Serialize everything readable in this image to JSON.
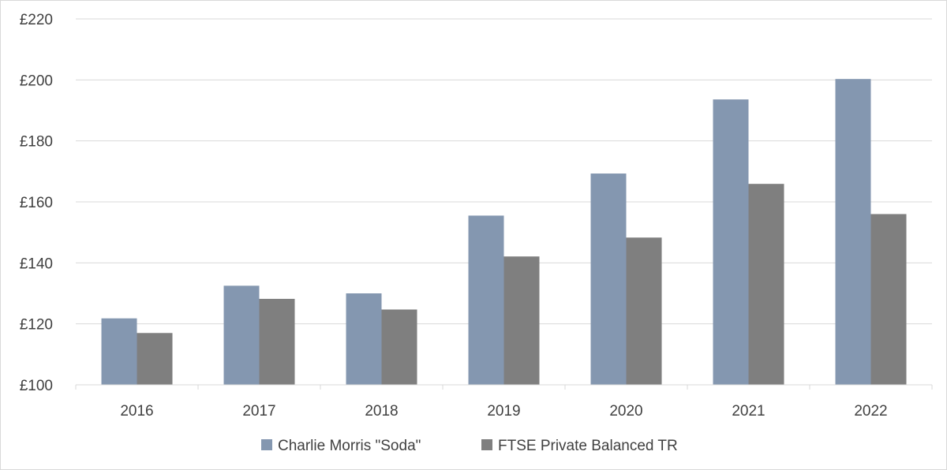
{
  "chart_data": {
    "type": "bar",
    "title": "",
    "xlabel": "",
    "ylabel": "",
    "categories": [
      "2016",
      "2017",
      "2018",
      "2019",
      "2020",
      "2021",
      "2022"
    ],
    "series": [
      {
        "name": "Charlie Morris \"Soda\"",
        "color": "#8497b0",
        "values": [
          121.8,
          132.5,
          130.0,
          155.5,
          169.3,
          193.6,
          200.3
        ]
      },
      {
        "name": "FTSE Private Balanced TR",
        "color": "#7f7f7f",
        "values": [
          117.0,
          128.2,
          124.7,
          142.1,
          148.3,
          165.9,
          156.0
        ]
      }
    ],
    "ylim": [
      100,
      220
    ],
    "yticks": [
      100,
      120,
      140,
      160,
      180,
      200,
      220
    ],
    "ytick_labels": [
      "£100",
      "£120",
      "£140",
      "£160",
      "£180",
      "£200",
      "£220"
    ],
    "grid": true,
    "legend_position": "bottom"
  }
}
